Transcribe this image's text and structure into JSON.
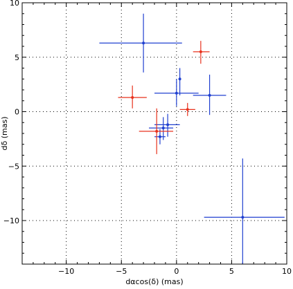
{
  "chart_data": {
    "type": "scatter",
    "title": "",
    "xlabel": "dαcos(δ) (mas)",
    "ylabel": "dδ (mas)",
    "xlim": [
      -14,
      10
    ],
    "ylim": [
      -14,
      10
    ],
    "xticks": [
      -10,
      -5,
      0,
      5,
      10
    ],
    "yticks": [
      -10,
      -5,
      0,
      5,
      10
    ],
    "grid": "dotted",
    "series": [
      {
        "color": "#1f3fd0",
        "points": [
          {
            "x": -3.0,
            "y": 6.3,
            "x_lo": -7.0,
            "x_hi": 0.5,
            "y_lo": 3.6,
            "y_hi": 9.0
          },
          {
            "x": 0.3,
            "y": 3.0,
            "x_lo": 0.3,
            "x_hi": 0.3,
            "y_lo": 1.5,
            "y_hi": 4.0
          },
          {
            "x": 0.0,
            "y": 1.7,
            "x_lo": -2.0,
            "x_hi": 2.0,
            "y_lo": 0.5,
            "y_hi": 3.0
          },
          {
            "x": 3.0,
            "y": 1.5,
            "x_lo": 1.5,
            "x_hi": 4.5,
            "y_lo": -0.3,
            "y_hi": 3.4
          },
          {
            "x": -0.8,
            "y": -1.2,
            "x_lo": -2.0,
            "x_hi": 0.3,
            "y_lo": -2.3,
            "y_hi": -0.2
          },
          {
            "x": -1.2,
            "y": -1.5,
            "x_lo": -2.5,
            "x_hi": -0.3,
            "y_lo": -2.6,
            "y_hi": -0.5
          },
          {
            "x": -1.5,
            "y": -2.3,
            "x_lo": -2.0,
            "x_hi": -1.0,
            "y_lo": -3.0,
            "y_hi": -1.6
          },
          {
            "x": 6.0,
            "y": -9.7,
            "x_lo": 2.5,
            "x_hi": 9.8,
            "y_lo": -14.0,
            "y_hi": -4.3
          }
        ]
      },
      {
        "color": "#e8311c",
        "points": [
          {
            "x": 2.2,
            "y": 5.5,
            "x_lo": 1.5,
            "x_hi": 3.0,
            "y_lo": 4.4,
            "y_hi": 6.5
          },
          {
            "x": -4.0,
            "y": 1.3,
            "x_lo": -5.3,
            "x_hi": -2.7,
            "y_lo": 0.3,
            "y_hi": 2.4
          },
          {
            "x": 1.0,
            "y": 0.2,
            "x_lo": 0.3,
            "x_hi": 1.7,
            "y_lo": -0.4,
            "y_hi": 0.8
          },
          {
            "x": -1.8,
            "y": -1.8,
            "x_lo": -3.4,
            "x_hi": -0.3,
            "y_lo": -3.9,
            "y_hi": 0.3
          }
        ]
      }
    ]
  }
}
